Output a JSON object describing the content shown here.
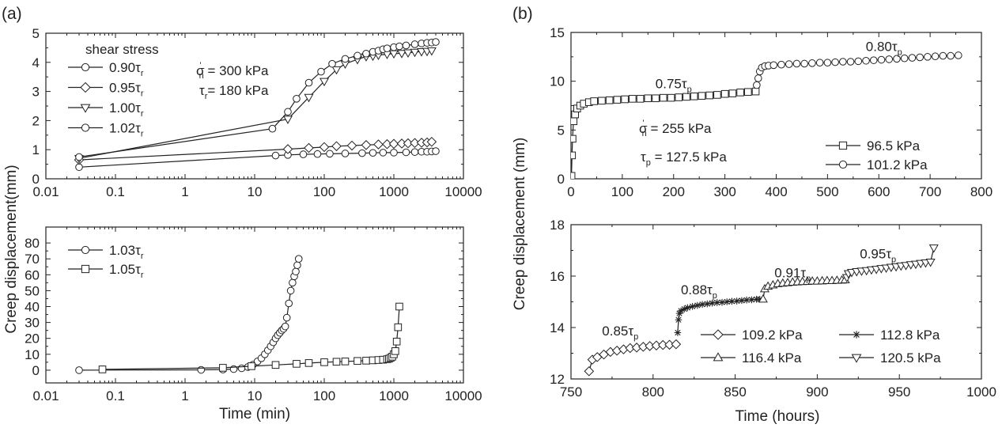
{
  "chart_data": [
    {
      "id": "a-top",
      "panel_label": "(a)",
      "type": "line",
      "x_scale": "log",
      "xlim": [
        0.01,
        10000
      ],
      "ylim": [
        0,
        5
      ],
      "xticks": [
        "0.01",
        "0.1",
        "1",
        "10",
        "100",
        "1000",
        "10000"
      ],
      "xtick_values": [
        0.01,
        0.1,
        1,
        10,
        100,
        1000,
        10000
      ],
      "yticks": [
        "0",
        "1",
        "2",
        "3",
        "4",
        "5"
      ],
      "ytick_values": [
        0,
        1,
        2,
        3,
        4,
        5
      ],
      "xlabel": "",
      "ylabel": "",
      "legend_title": "shear stress",
      "legend_position": "top-left",
      "annotations": [
        {
          "id": "sigma",
          "base": "σ",
          "sub": "n",
          "sup": "'",
          "tail": " = 300 kPa"
        },
        {
          "id": "tau",
          "base": "τ",
          "sub": "r",
          "sup": "",
          "tail": "= 180 kPa"
        }
      ],
      "series": [
        {
          "name": "0.90τr",
          "label": "0.90τ",
          "label_sub": "r",
          "marker": "circle",
          "x": [
            0.03,
            20,
            30,
            50,
            80,
            120,
            200,
            350,
            500,
            700,
            1000,
            1500,
            2000,
            2500,
            3000,
            3500,
            4000
          ],
          "y": [
            0.4,
            0.8,
            0.82,
            0.84,
            0.85,
            0.86,
            0.87,
            0.88,
            0.89,
            0.9,
            0.9,
            0.91,
            0.92,
            0.93,
            0.93,
            0.94,
            0.95
          ]
        },
        {
          "name": "0.95τr",
          "label": "0.95τ",
          "label_sub": "r",
          "marker": "diamond",
          "x": [
            0.03,
            30,
            60,
            100,
            150,
            250,
            400,
            600,
            800,
            1000,
            1300,
            1600,
            2000,
            2500,
            3000,
            3500
          ],
          "y": [
            0.65,
            1.02,
            1.06,
            1.09,
            1.12,
            1.14,
            1.16,
            1.18,
            1.19,
            1.2,
            1.21,
            1.22,
            1.23,
            1.24,
            1.25,
            1.27
          ]
        },
        {
          "name": "1.00τr",
          "label": "1.00τ",
          "label_sub": "r",
          "marker": "triangle-down",
          "x": [
            0.03,
            30,
            60,
            100,
            150,
            200,
            300,
            400,
            500,
            600,
            800,
            1000,
            1300,
            1600,
            2000,
            2500,
            3000,
            3500
          ],
          "y": [
            0.7,
            2.05,
            2.8,
            3.35,
            3.75,
            3.95,
            4.1,
            4.2,
            4.22,
            4.25,
            4.28,
            4.3,
            4.31,
            4.33,
            4.35,
            4.37,
            4.38,
            4.4
          ]
        },
        {
          "name": "1.02τr",
          "label": "1.02τ",
          "label_sub": "r",
          "marker": "circle",
          "x": [
            0.03,
            18,
            30,
            40,
            60,
            90,
            130,
            200,
            300,
            400,
            500,
            600,
            700,
            800,
            1000,
            1200,
            1500,
            2000,
            2500,
            3000,
            3500,
            4000
          ],
          "y": [
            0.75,
            1.72,
            2.3,
            2.75,
            3.3,
            3.68,
            3.95,
            4.12,
            4.23,
            4.3,
            4.36,
            4.4,
            4.45,
            4.48,
            4.52,
            4.55,
            4.58,
            4.62,
            4.65,
            4.67,
            4.68,
            4.7
          ]
        }
      ]
    },
    {
      "id": "a-bottom",
      "type": "line",
      "x_scale": "log",
      "xlim": [
        0.01,
        10000
      ],
      "ylim": [
        -8,
        90
      ],
      "xticks": [
        "0.01",
        "0.1",
        "1",
        "10",
        "100",
        "1000",
        "10000"
      ],
      "xtick_values": [
        0.01,
        0.1,
        1,
        10,
        100,
        1000,
        10000
      ],
      "yticks": [
        "0",
        "10",
        "20",
        "30",
        "40",
        "50",
        "60",
        "70",
        "80"
      ],
      "ytick_values": [
        0,
        10,
        20,
        30,
        40,
        50,
        60,
        70,
        80
      ],
      "xlabel": "Time (min)",
      "ylabel": "Creep displacement(mm)",
      "legend_position": "top-left",
      "series": [
        {
          "name": "1.03τr",
          "label": "1.03τ",
          "label_sub": "r",
          "marker": "circle",
          "x": [
            0.03,
            1.7,
            3.5,
            5,
            6.5,
            8,
            9.5,
            11,
            12.5,
            14,
            15.5,
            17,
            18.5,
            20,
            21.5,
            23,
            24.5,
            26,
            27.5,
            29,
            31,
            33,
            35,
            37,
            39,
            41,
            43
          ],
          "y": [
            0,
            0.2,
            0.4,
            0.7,
            1.2,
            2,
            3.5,
            5.5,
            7.5,
            10,
            12.5,
            15,
            17.5,
            20,
            22,
            23.5,
            25,
            26,
            27.5,
            33,
            42,
            50,
            55,
            59,
            62,
            66,
            70
          ]
        },
        {
          "name": "1.05τr",
          "label": "1.05τ",
          "label_sub": "r",
          "marker": "square",
          "x": [
            0.065,
            3.5,
            9,
            20,
            40,
            60,
            100,
            150,
            200,
            300,
            400,
            500,
            600,
            700,
            800,
            850,
            900,
            950,
            1000,
            1050,
            1100,
            1150,
            1200
          ],
          "y": [
            0.5,
            1.5,
            2.5,
            3.3,
            4,
            4.5,
            5,
            5.3,
            5.5,
            5.8,
            6,
            6.2,
            6.4,
            6.6,
            6.9,
            7.2,
            7.8,
            8.5,
            10,
            12,
            18,
            27,
            40
          ]
        }
      ]
    },
    {
      "id": "b-top",
      "panel_label": "(b)",
      "type": "line",
      "x_scale": "linear",
      "xlim": [
        0,
        800
      ],
      "ylim": [
        0,
        15
      ],
      "xticks": [
        "0",
        "100",
        "200",
        "300",
        "400",
        "500",
        "600",
        "700",
        "800"
      ],
      "xtick_values": [
        0,
        100,
        200,
        300,
        400,
        500,
        600,
        700,
        800
      ],
      "yticks": [
        "0",
        "5",
        "10",
        "15"
      ],
      "ytick_values": [
        0,
        5,
        10,
        15
      ],
      "xlabel": "",
      "ylabel": "",
      "legend_position": "bottom-right",
      "annotations": [
        {
          "id": "sigma",
          "base": "σ",
          "sub": "n",
          "sup": "'",
          "tail": " = 255 kPa"
        },
        {
          "id": "tau",
          "base": "τ",
          "sub": "p",
          "sup": "",
          "tail": " = 127.5 kPa"
        },
        {
          "id": "l075",
          "base": "0.75τ",
          "sub": "p",
          "sup": "",
          "tail": "",
          "x": 200,
          "y": 9.3
        },
        {
          "id": "l080",
          "base": "0.80τ",
          "sub": "p",
          "sup": "",
          "tail": "",
          "x": 610,
          "y": 13.1
        }
      ],
      "series": [
        {
          "name": "96.5 kPa",
          "label": "96.5 kPa",
          "marker": "square",
          "x": [
            1,
            2,
            3,
            5,
            8,
            12,
            18,
            25,
            35,
            45,
            60,
            75,
            90,
            105,
            120,
            135,
            150,
            165,
            180,
            195,
            210,
            225,
            240,
            255,
            270,
            285,
            300,
            315,
            330,
            345,
            360
          ],
          "y": [
            0.3,
            2.4,
            4.1,
            5.9,
            6.6,
            7.2,
            7.5,
            7.7,
            7.85,
            7.95,
            8.0,
            8.05,
            8.1,
            8.15,
            8.2,
            8.2,
            8.25,
            8.25,
            8.3,
            8.3,
            8.35,
            8.4,
            8.45,
            8.5,
            8.55,
            8.6,
            8.7,
            8.75,
            8.85,
            8.9,
            8.95
          ]
        },
        {
          "name": "101.2 kPa",
          "label": "101.2 kPa",
          "marker": "circle",
          "x": [
            362,
            365,
            368,
            372,
            378,
            385,
            395,
            410,
            425,
            440,
            455,
            470,
            485,
            500,
            515,
            530,
            545,
            560,
            575,
            590,
            605,
            620,
            635,
            650,
            665,
            680,
            695,
            710,
            725,
            740,
            755
          ],
          "y": [
            9.6,
            10.3,
            11.0,
            11.4,
            11.55,
            11.6,
            11.65,
            11.7,
            11.75,
            11.8,
            11.8,
            11.85,
            11.9,
            11.9,
            11.95,
            12.0,
            12.0,
            12.05,
            12.1,
            12.15,
            12.2,
            12.25,
            12.3,
            12.35,
            12.4,
            12.45,
            12.5,
            12.55,
            12.6,
            12.6,
            12.65
          ]
        }
      ]
    },
    {
      "id": "b-bottom",
      "type": "line",
      "x_scale": "linear",
      "xlim": [
        750,
        1000
      ],
      "ylim": [
        12,
        18
      ],
      "xticks": [
        "750",
        "800",
        "850",
        "900",
        "950",
        "1000"
      ],
      "xtick_values": [
        750,
        800,
        850,
        900,
        950,
        1000
      ],
      "yticks": [
        "12",
        "14",
        "16",
        "18"
      ],
      "ytick_values": [
        12,
        14,
        16,
        18
      ],
      "xlabel": "Time (hours)",
      "ylabel": "Creep displacement (mm)",
      "legend_position": "bottom-right",
      "annotations": [
        {
          "id": "l085",
          "base": "0.85τ",
          "sub": "p",
          "sup": "",
          "tail": "",
          "x": 780,
          "y": 13.7
        },
        {
          "id": "l088",
          "base": "0.88τ",
          "sub": "p",
          "sup": "",
          "tail": "",
          "x": 828,
          "y": 15.3
        },
        {
          "id": "l091",
          "base": "0.91τ",
          "sub": "p",
          "sup": "",
          "tail": "",
          "x": 885,
          "y": 15.95
        },
        {
          "id": "l095",
          "base": "0.95τ",
          "sub": "p",
          "sup": "",
          "tail": "",
          "x": 937,
          "y": 16.7
        }
      ],
      "series": [
        {
          "name": "109.2 kPa",
          "label": "109.2 kPa",
          "marker": "diamond",
          "x": [
            761,
            763,
            766,
            770,
            774,
            778,
            782,
            786,
            790,
            794,
            798,
            802,
            806,
            810,
            814
          ],
          "y": [
            12.3,
            12.75,
            12.85,
            12.95,
            13.05,
            13.1,
            13.15,
            13.2,
            13.22,
            13.25,
            13.28,
            13.3,
            13.32,
            13.33,
            13.35
          ]
        },
        {
          "name": "112.8 kPa",
          "label": "112.8 kPa",
          "marker": "star",
          "x": [
            815,
            815.5,
            816,
            817,
            819,
            821,
            824,
            827,
            830,
            833,
            836,
            839,
            842,
            845,
            848,
            851,
            854,
            857,
            860,
            863,
            865
          ],
          "y": [
            13.8,
            14.3,
            14.55,
            14.65,
            14.72,
            14.77,
            14.82,
            14.86,
            14.9,
            14.92,
            14.95,
            14.97,
            14.98,
            15.0,
            15.02,
            15.03,
            15.05,
            15.07,
            15.08,
            15.1,
            15.1
          ]
        },
        {
          "name": "116.4 kPa",
          "label": "116.4 kPa",
          "marker": "triangle",
          "x": [
            867,
            868,
            870,
            873,
            876,
            879,
            882,
            885,
            888,
            891,
            894,
            897,
            900,
            903,
            906,
            909,
            912,
            915,
            917
          ],
          "y": [
            15.1,
            15.5,
            15.6,
            15.65,
            15.7,
            15.72,
            15.74,
            15.76,
            15.77,
            15.78,
            15.79,
            15.8,
            15.8,
            15.81,
            15.82,
            15.82,
            15.83,
            15.84,
            15.85
          ]
        },
        {
          "name": "120.5 kPa",
          "label": "120.5 kPa",
          "marker": "triangle-down",
          "x": [
            918,
            919,
            921,
            924,
            927,
            930,
            933,
            936,
            939,
            942,
            945,
            948,
            951,
            954,
            957,
            960,
            963,
            966,
            969,
            971
          ],
          "y": [
            15.95,
            16.1,
            16.15,
            16.18,
            16.2,
            16.22,
            16.25,
            16.27,
            16.3,
            16.32,
            16.35,
            16.37,
            16.4,
            16.42,
            16.45,
            16.47,
            16.5,
            16.52,
            16.55,
            17.1
          ]
        }
      ]
    }
  ]
}
